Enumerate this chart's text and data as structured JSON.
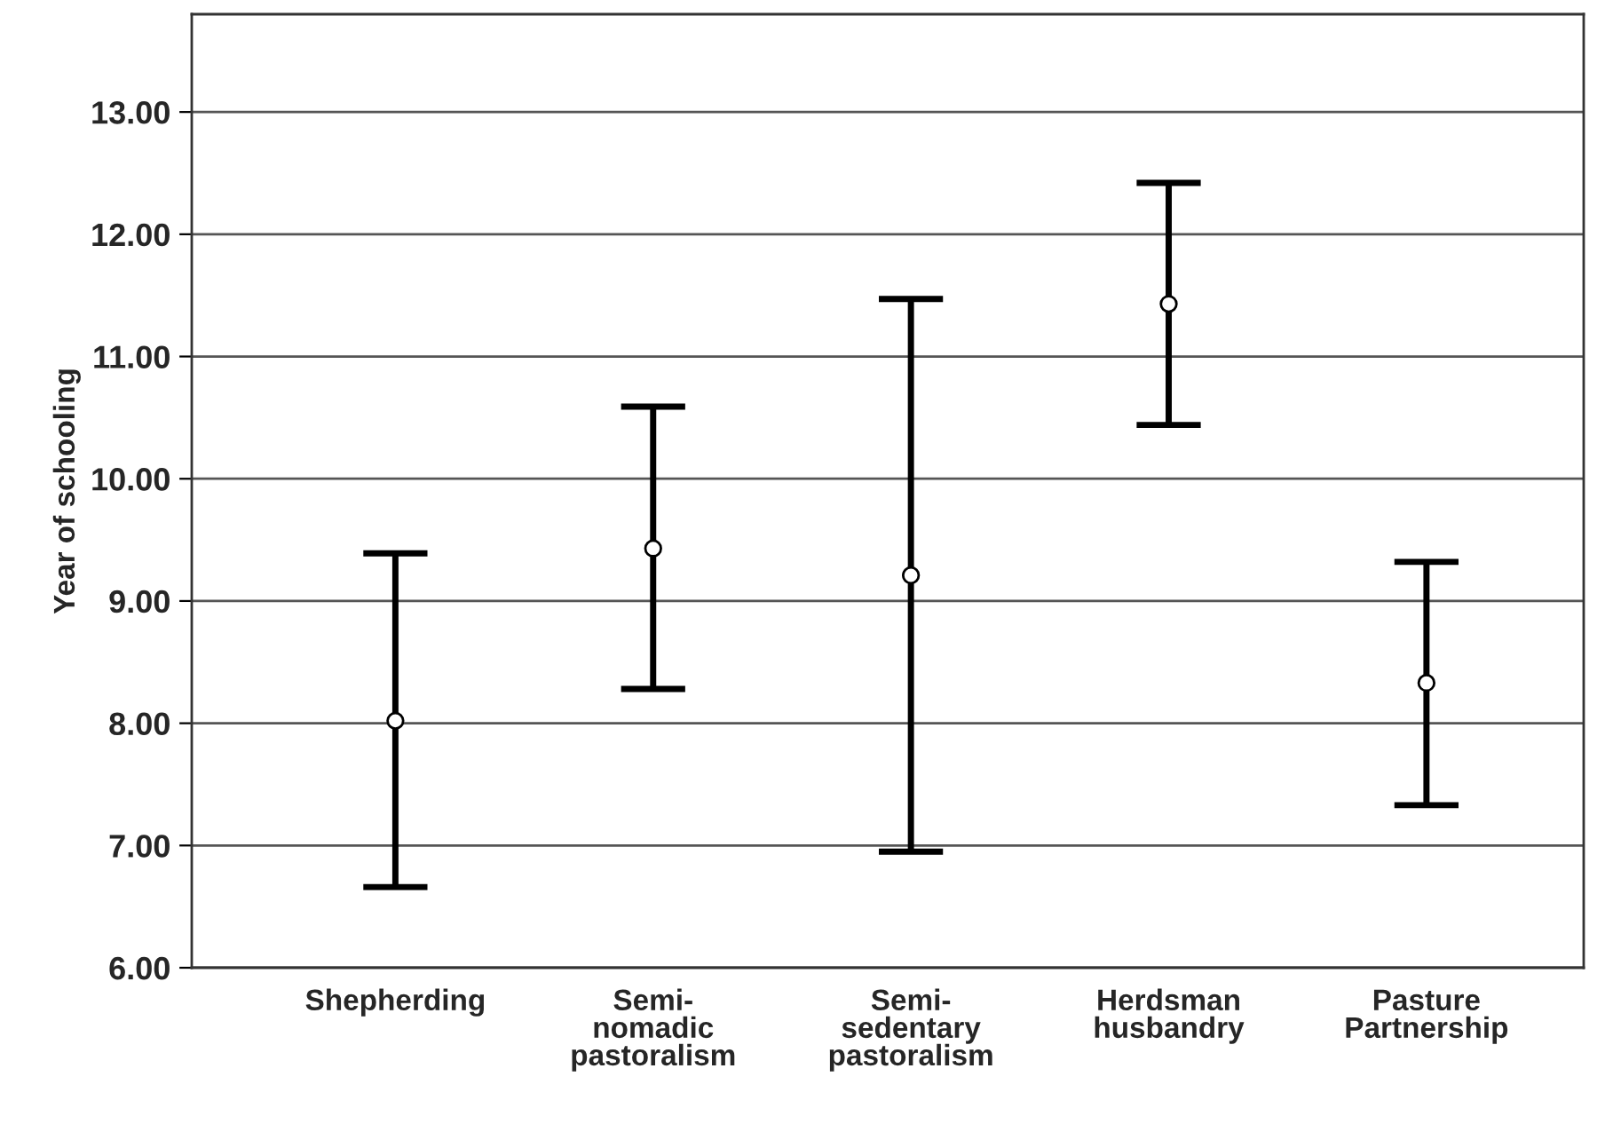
{
  "chart_data": {
    "type": "scatter",
    "ylabel": "Year of schooling",
    "categories": [
      "Shepherding",
      "Semi-\nnomadic\npastoralism",
      "Semi-\nsedentary\npastoralism",
      "Herdsman\nhusbandry",
      "Pasture\nPartnership"
    ],
    "values": [
      8.02,
      9.43,
      9.21,
      11.43,
      8.33
    ],
    "errors": [
      [
        6.66,
        9.39
      ],
      [
        8.28,
        10.59
      ],
      [
        6.95,
        11.47
      ],
      [
        10.44,
        12.42
      ],
      [
        7.33,
        9.32
      ]
    ],
    "color": "#000000",
    "marker": "circle",
    "ylim": [
      6,
      13.8
    ],
    "yticks": [
      {
        "value": 6,
        "label": "6.00"
      },
      {
        "value": 7,
        "label": "7.00"
      },
      {
        "value": 8,
        "label": "8.00"
      },
      {
        "value": 9,
        "label": "9.00"
      },
      {
        "value": 10,
        "label": "10.00"
      },
      {
        "value": 11,
        "label": "11.00"
      },
      {
        "value": 12,
        "label": "12.00"
      },
      {
        "value": 13,
        "label": "13.00"
      }
    ],
    "grid": "y"
  }
}
